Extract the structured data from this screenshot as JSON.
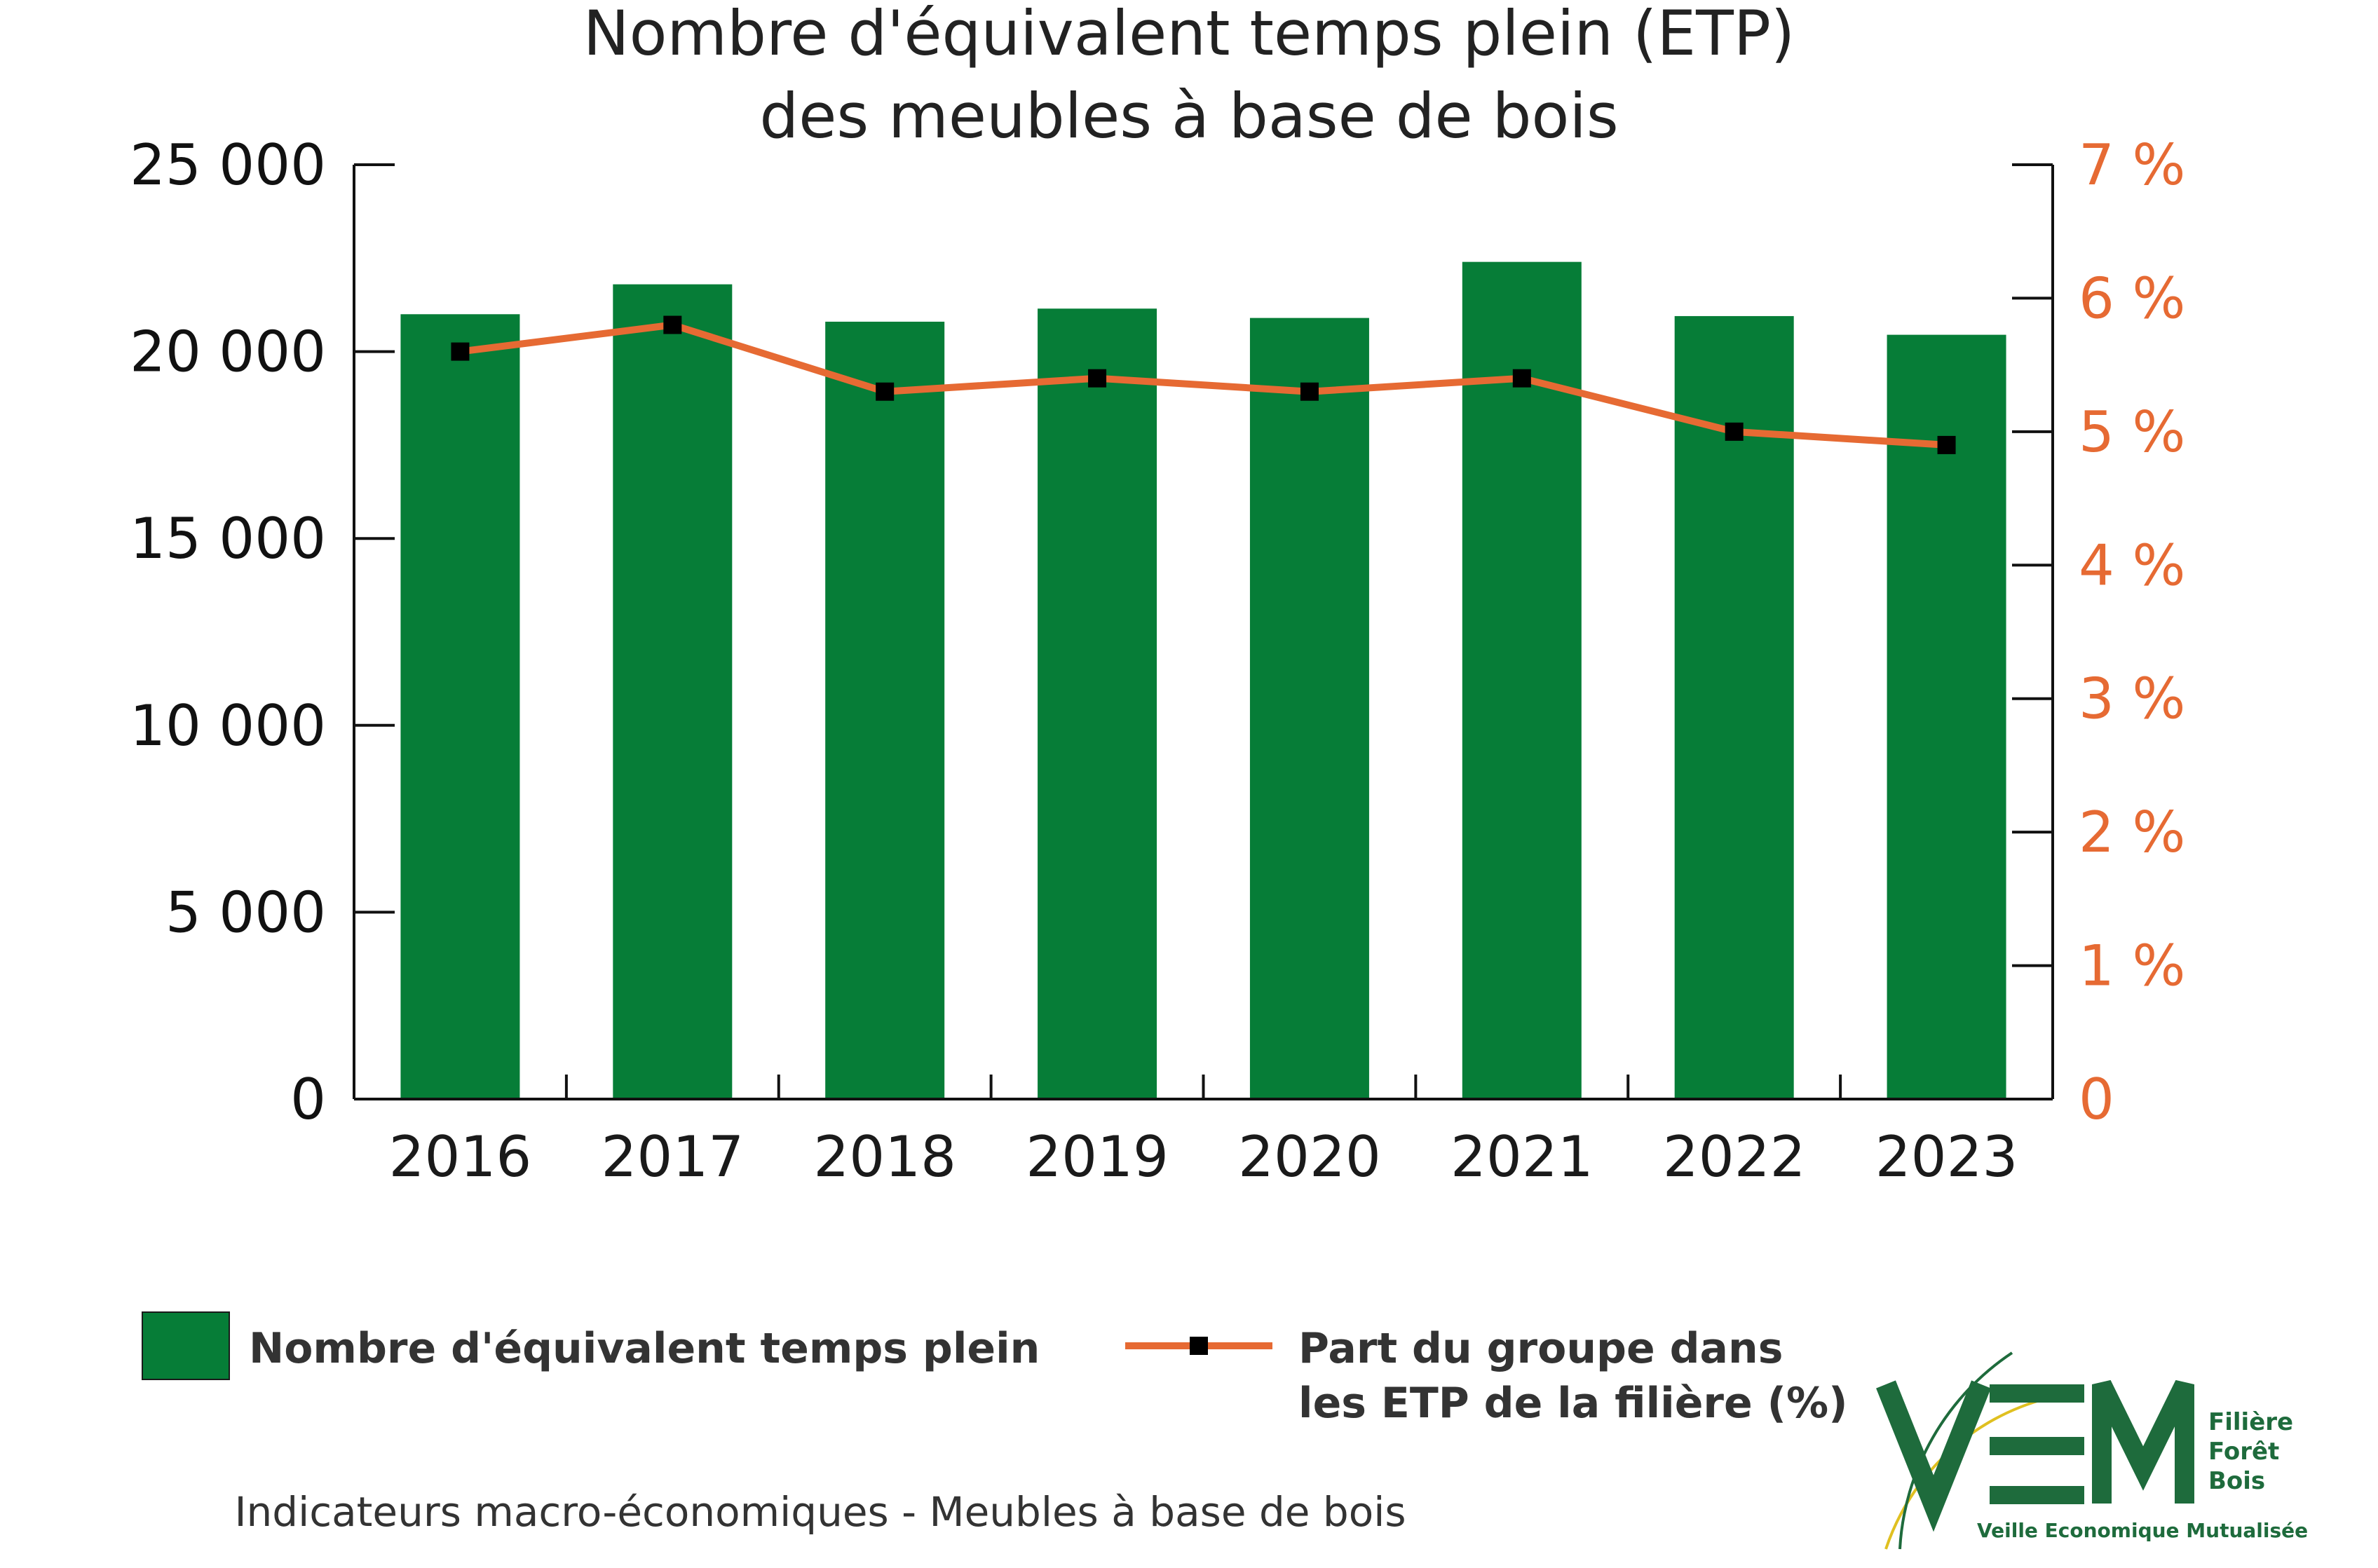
{
  "chart_data": {
    "type": "bar",
    "title_line1": "Nombre d'équivalent temps plein (ETP)",
    "title_line2": "des meubles à base de bois",
    "categories": [
      "2016",
      "2017",
      "2018",
      "2019",
      "2020",
      "2021",
      "2022",
      "2023"
    ],
    "series": [
      {
        "name": "Nombre d'équivalent temps plein",
        "type": "bar",
        "axis": "left",
        "color": "#067d37",
        "values": [
          21000,
          21800,
          20800,
          21150,
          20900,
          22400,
          20950,
          20450
        ]
      },
      {
        "name_line1": "Part du groupe dans",
        "name_line2": "les ETP de la filière  (%)",
        "type": "line",
        "axis": "right",
        "color": "#e66a33",
        "marker_color": "#000000",
        "values": [
          5.6,
          5.8,
          5.3,
          5.4,
          5.3,
          5.4,
          5.0,
          4.9
        ]
      }
    ],
    "y_left": {
      "ylim": [
        0,
        25000
      ],
      "ticks": [
        0,
        5000,
        10000,
        15000,
        20000,
        25000
      ],
      "tick_labels": [
        "0",
        "5 000",
        "10 000",
        "15 000",
        "20 000",
        "25 000"
      ]
    },
    "y_right": {
      "ylim": [
        0,
        7
      ],
      "ticks": [
        0,
        1,
        2,
        3,
        4,
        5,
        6,
        7
      ],
      "tick_labels": [
        "0",
        "1 %",
        "2 %",
        "3 %",
        "4 %",
        "5 %",
        "6 %",
        "7 %"
      ]
    },
    "grid": false,
    "legend_position": "bottom"
  },
  "footer": "Indicateurs macro-économiques - Meubles à base de bois",
  "logo": {
    "letters": "VEM",
    "line1": "Filière",
    "line2": "Forêt",
    "line3": "Bois",
    "tagline": "Veille Economique Mutualisée",
    "green": "#1e6b3c",
    "yellow": "#e0c020"
  }
}
